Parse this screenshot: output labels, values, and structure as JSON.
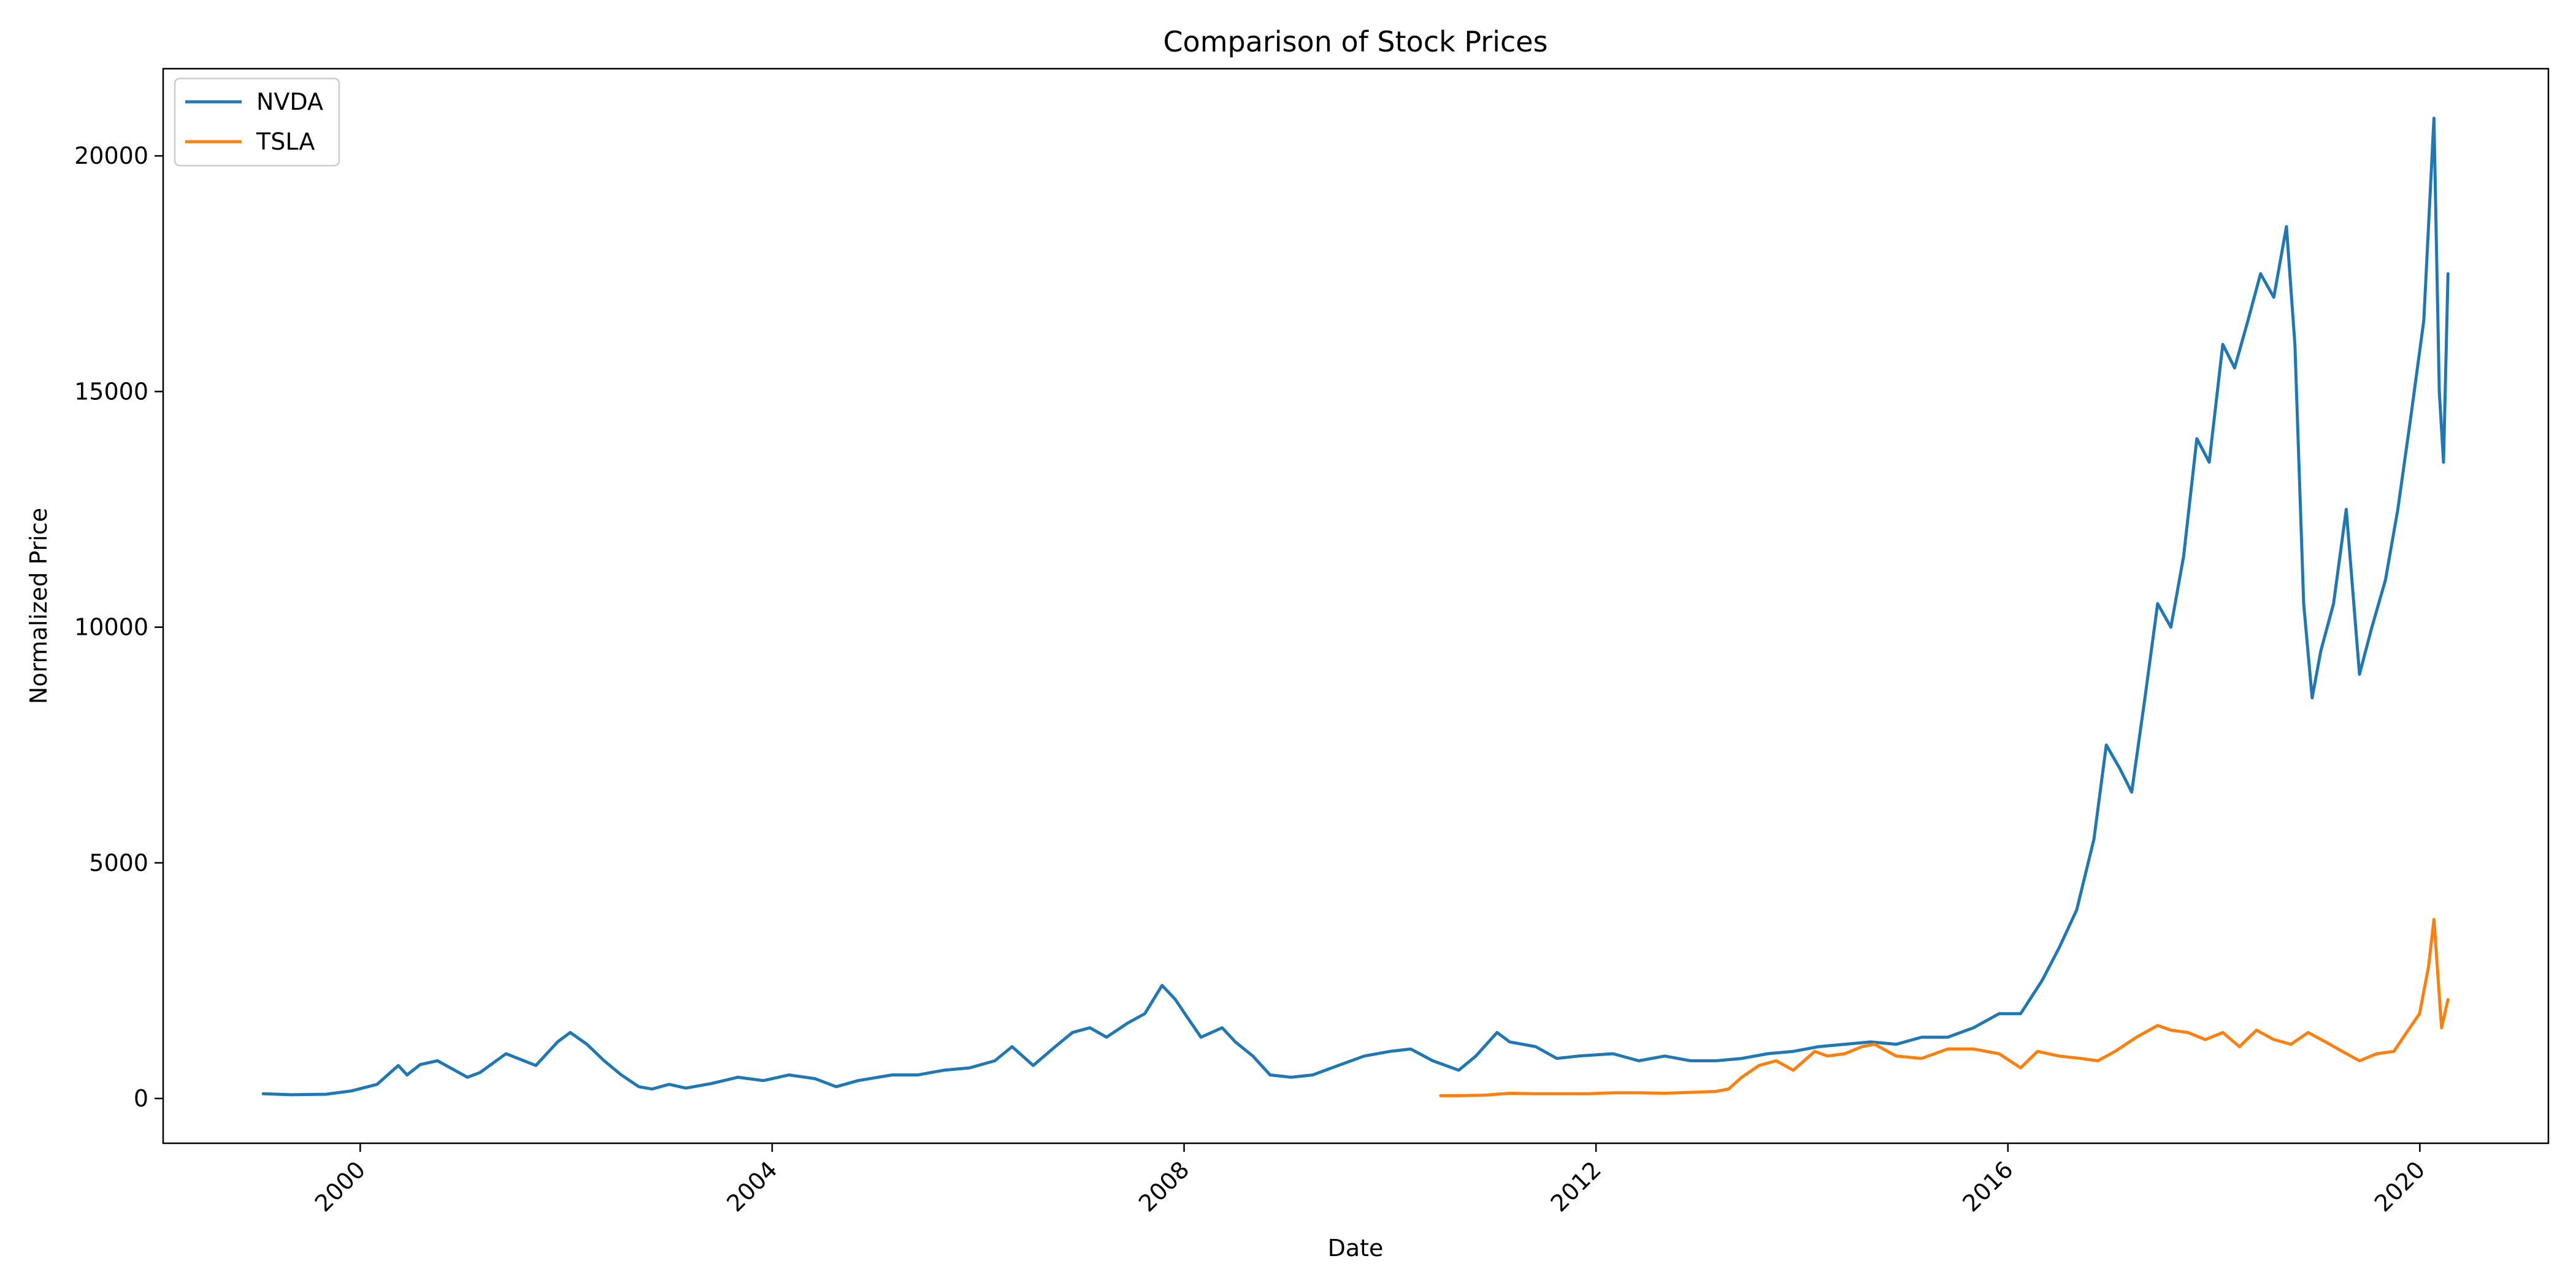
{
  "chart_data": {
    "type": "line",
    "title": "Comparison of Stock Prices",
    "xlabel": "Date",
    "ylabel": "Normalized Price",
    "xlim": [
      "1998-02-01",
      "2021-04-01"
    ],
    "ylim": [
      -950,
      21850
    ],
    "x_ticks": [
      "2000",
      "2004",
      "2008",
      "2012",
      "2016",
      "2020"
    ],
    "y_ticks": [
      "0",
      "5000",
      "10000",
      "15000",
      "20000"
    ],
    "grid": false,
    "legend_position": "top-left",
    "series": [
      {
        "name": "NVDA",
        "color": "#1f77b4",
        "points": [
          [
            "1999-01-22",
            100
          ],
          [
            "1999-05-01",
            80
          ],
          [
            "1999-09-01",
            90
          ],
          [
            "1999-12-01",
            160
          ],
          [
            "2000-03-01",
            300
          ],
          [
            "2000-05-15",
            700
          ],
          [
            "2000-06-15",
            500
          ],
          [
            "2000-08-01",
            720
          ],
          [
            "2000-10-01",
            800
          ],
          [
            "2000-12-01",
            600
          ],
          [
            "2001-01-15",
            450
          ],
          [
            "2001-03-01",
            550
          ],
          [
            "2001-06-01",
            950
          ],
          [
            "2001-09-15",
            700
          ],
          [
            "2001-12-01",
            1200
          ],
          [
            "2002-01-15",
            1400
          ],
          [
            "2002-03-15",
            1150
          ],
          [
            "2002-05-15",
            800
          ],
          [
            "2002-07-15",
            500
          ],
          [
            "2002-09-15",
            250
          ],
          [
            "2002-11-01",
            200
          ],
          [
            "2003-01-01",
            300
          ],
          [
            "2003-03-01",
            220
          ],
          [
            "2003-06-01",
            320
          ],
          [
            "2003-09-01",
            450
          ],
          [
            "2003-12-01",
            380
          ],
          [
            "2004-03-01",
            500
          ],
          [
            "2004-06-01",
            420
          ],
          [
            "2004-08-15",
            250
          ],
          [
            "2004-11-01",
            380
          ],
          [
            "2005-03-01",
            500
          ],
          [
            "2005-06-01",
            500
          ],
          [
            "2005-09-01",
            600
          ],
          [
            "2005-12-01",
            650
          ],
          [
            "2006-03-01",
            800
          ],
          [
            "2006-05-01",
            1100
          ],
          [
            "2006-07-15",
            700
          ],
          [
            "2006-10-01",
            1100
          ],
          [
            "2006-12-01",
            1400
          ],
          [
            "2007-02-01",
            1500
          ],
          [
            "2007-04-01",
            1300
          ],
          [
            "2007-06-15",
            1600
          ],
          [
            "2007-08-15",
            1800
          ],
          [
            "2007-10-15",
            2400
          ],
          [
            "2007-12-01",
            2100
          ],
          [
            "2008-01-15",
            1700
          ],
          [
            "2008-03-01",
            1300
          ],
          [
            "2008-05-15",
            1500
          ],
          [
            "2008-07-01",
            1200
          ],
          [
            "2008-09-01",
            900
          ],
          [
            "2008-11-01",
            500
          ],
          [
            "2009-01-15",
            450
          ],
          [
            "2009-04-01",
            500
          ],
          [
            "2009-07-01",
            700
          ],
          [
            "2009-10-01",
            900
          ],
          [
            "2010-01-01",
            1000
          ],
          [
            "2010-03-15",
            1050
          ],
          [
            "2010-06-01",
            800
          ],
          [
            "2010-09-01",
            600
          ],
          [
            "2010-11-01",
            900
          ],
          [
            "2011-01-15",
            1400
          ],
          [
            "2011-03-01",
            1200
          ],
          [
            "2011-06-01",
            1100
          ],
          [
            "2011-08-15",
            850
          ],
          [
            "2011-11-01",
            900
          ],
          [
            "2012-03-01",
            950
          ],
          [
            "2012-06-01",
            800
          ],
          [
            "2012-09-01",
            900
          ],
          [
            "2012-12-01",
            800
          ],
          [
            "2013-03-01",
            800
          ],
          [
            "2013-06-01",
            850
          ],
          [
            "2013-09-01",
            950
          ],
          [
            "2013-12-01",
            1000
          ],
          [
            "2014-03-01",
            1100
          ],
          [
            "2014-06-01",
            1150
          ],
          [
            "2014-09-01",
            1200
          ],
          [
            "2014-12-01",
            1150
          ],
          [
            "2015-03-01",
            1300
          ],
          [
            "2015-06-01",
            1300
          ],
          [
            "2015-09-01",
            1500
          ],
          [
            "2015-12-01",
            1800
          ],
          [
            "2016-02-15",
            1800
          ],
          [
            "2016-05-01",
            2500
          ],
          [
            "2016-07-01",
            3200
          ],
          [
            "2016-09-01",
            4000
          ],
          [
            "2016-11-01",
            5500
          ],
          [
            "2016-12-15",
            7500
          ],
          [
            "2017-02-01",
            7000
          ],
          [
            "2017-03-15",
            6500
          ],
          [
            "2017-05-01",
            8500
          ],
          [
            "2017-06-15",
            10500
          ],
          [
            "2017-08-01",
            10000
          ],
          [
            "2017-09-15",
            11500
          ],
          [
            "2017-11-01",
            14000
          ],
          [
            "2017-12-15",
            13500
          ],
          [
            "2018-02-01",
            16000
          ],
          [
            "2018-03-15",
            15500
          ],
          [
            "2018-05-01",
            16500
          ],
          [
            "2018-06-15",
            17500
          ],
          [
            "2018-08-01",
            17000
          ],
          [
            "2018-09-15",
            18500
          ],
          [
            "2018-10-15",
            16000
          ],
          [
            "2018-11-15",
            10500
          ],
          [
            "2018-12-15",
            8500
          ],
          [
            "2019-01-15",
            9500
          ],
          [
            "2019-03-01",
            10500
          ],
          [
            "2019-04-15",
            12500
          ],
          [
            "2019-06-01",
            9000
          ],
          [
            "2019-07-15",
            10000
          ],
          [
            "2019-09-01",
            11000
          ],
          [
            "2019-10-15",
            12500
          ],
          [
            "2019-12-01",
            14500
          ],
          [
            "2020-01-15",
            16500
          ],
          [
            "2020-02-20",
            20800
          ],
          [
            "2020-03-10",
            15000
          ],
          [
            "2020-03-25",
            13500
          ],
          [
            "2020-04-10",
            17500
          ]
        ]
      },
      {
        "name": "TSLA",
        "color": "#ff7f0e",
        "points": [
          [
            "2010-06-29",
            60
          ],
          [
            "2010-09-01",
            60
          ],
          [
            "2010-12-01",
            70
          ],
          [
            "2011-03-01",
            110
          ],
          [
            "2011-06-01",
            100
          ],
          [
            "2011-09-01",
            100
          ],
          [
            "2011-12-01",
            100
          ],
          [
            "2012-03-01",
            120
          ],
          [
            "2012-06-01",
            120
          ],
          [
            "2012-09-01",
            110
          ],
          [
            "2012-12-01",
            130
          ],
          [
            "2013-03-01",
            150
          ],
          [
            "2013-04-15",
            200
          ],
          [
            "2013-06-01",
            450
          ],
          [
            "2013-08-01",
            700
          ],
          [
            "2013-10-01",
            800
          ],
          [
            "2013-12-01",
            600
          ],
          [
            "2014-02-15",
            1000
          ],
          [
            "2014-04-01",
            900
          ],
          [
            "2014-06-01",
            950
          ],
          [
            "2014-08-01",
            1100
          ],
          [
            "2014-09-15",
            1150
          ],
          [
            "2014-12-01",
            900
          ],
          [
            "2015-03-01",
            850
          ],
          [
            "2015-06-01",
            1050
          ],
          [
            "2015-09-01",
            1050
          ],
          [
            "2015-12-01",
            950
          ],
          [
            "2016-02-15",
            650
          ],
          [
            "2016-04-15",
            1000
          ],
          [
            "2016-07-01",
            900
          ],
          [
            "2016-09-15",
            850
          ],
          [
            "2016-11-15",
            800
          ],
          [
            "2017-01-15",
            1000
          ],
          [
            "2017-04-01",
            1300
          ],
          [
            "2017-06-15",
            1550
          ],
          [
            "2017-08-01",
            1450
          ],
          [
            "2017-10-01",
            1400
          ],
          [
            "2017-12-01",
            1250
          ],
          [
            "2018-02-01",
            1400
          ],
          [
            "2018-04-01",
            1100
          ],
          [
            "2018-06-01",
            1450
          ],
          [
            "2018-08-01",
            1250
          ],
          [
            "2018-10-01",
            1150
          ],
          [
            "2018-12-01",
            1400
          ],
          [
            "2019-02-01",
            1200
          ],
          [
            "2019-04-01",
            1000
          ],
          [
            "2019-06-01",
            800
          ],
          [
            "2019-08-01",
            950
          ],
          [
            "2019-10-01",
            1000
          ],
          [
            "2019-11-15",
            1400
          ],
          [
            "2019-12-31",
            1800
          ],
          [
            "2020-02-01",
            2800
          ],
          [
            "2020-02-20",
            3800
          ],
          [
            "2020-03-18",
            1500
          ],
          [
            "2020-04-10",
            2100
          ]
        ]
      }
    ]
  }
}
